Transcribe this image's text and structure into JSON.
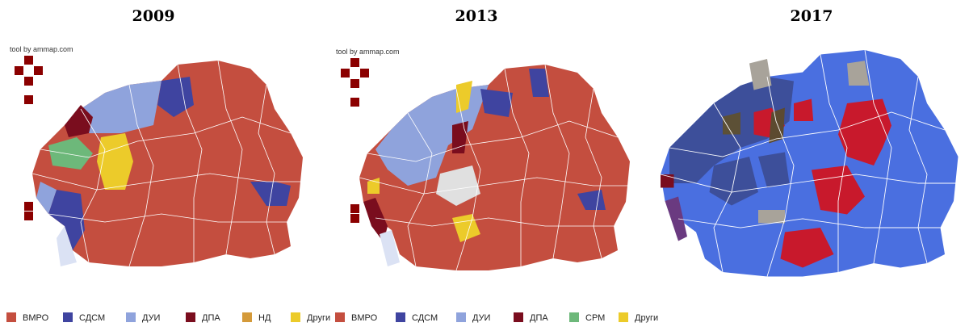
{
  "maps": [
    {
      "title": "2009",
      "credit": "tool by ammap.com"
    },
    {
      "title": "2013",
      "credit": "tool by ammap.com"
    },
    {
      "title": "2017"
    }
  ],
  "legend": [
    {
      "label": "ВМРО",
      "color": "#c44e3f"
    },
    {
      "label": "СДСМ",
      "color": "#3f44a0"
    },
    {
      "label": "ДУИ",
      "color": "#8fa3dc"
    },
    {
      "label": "ДПА",
      "color": "#7a0d1e"
    },
    {
      "label": "НД",
      "color": "#d49a3a"
    },
    {
      "label": "Други",
      "color": "#eccb2a"
    },
    {
      "label": "ВМРО",
      "color": "#c44e3f"
    },
    {
      "label": "СДСМ",
      "color": "#3f44a0"
    },
    {
      "label": "ДУИ",
      "color": "#8fa3dc"
    },
    {
      "label": "ДПА",
      "color": "#7a0d1e"
    },
    {
      "label": "СРМ",
      "color": "#6db87a"
    },
    {
      "label": "Други",
      "color": "#eccb2a"
    }
  ]
}
